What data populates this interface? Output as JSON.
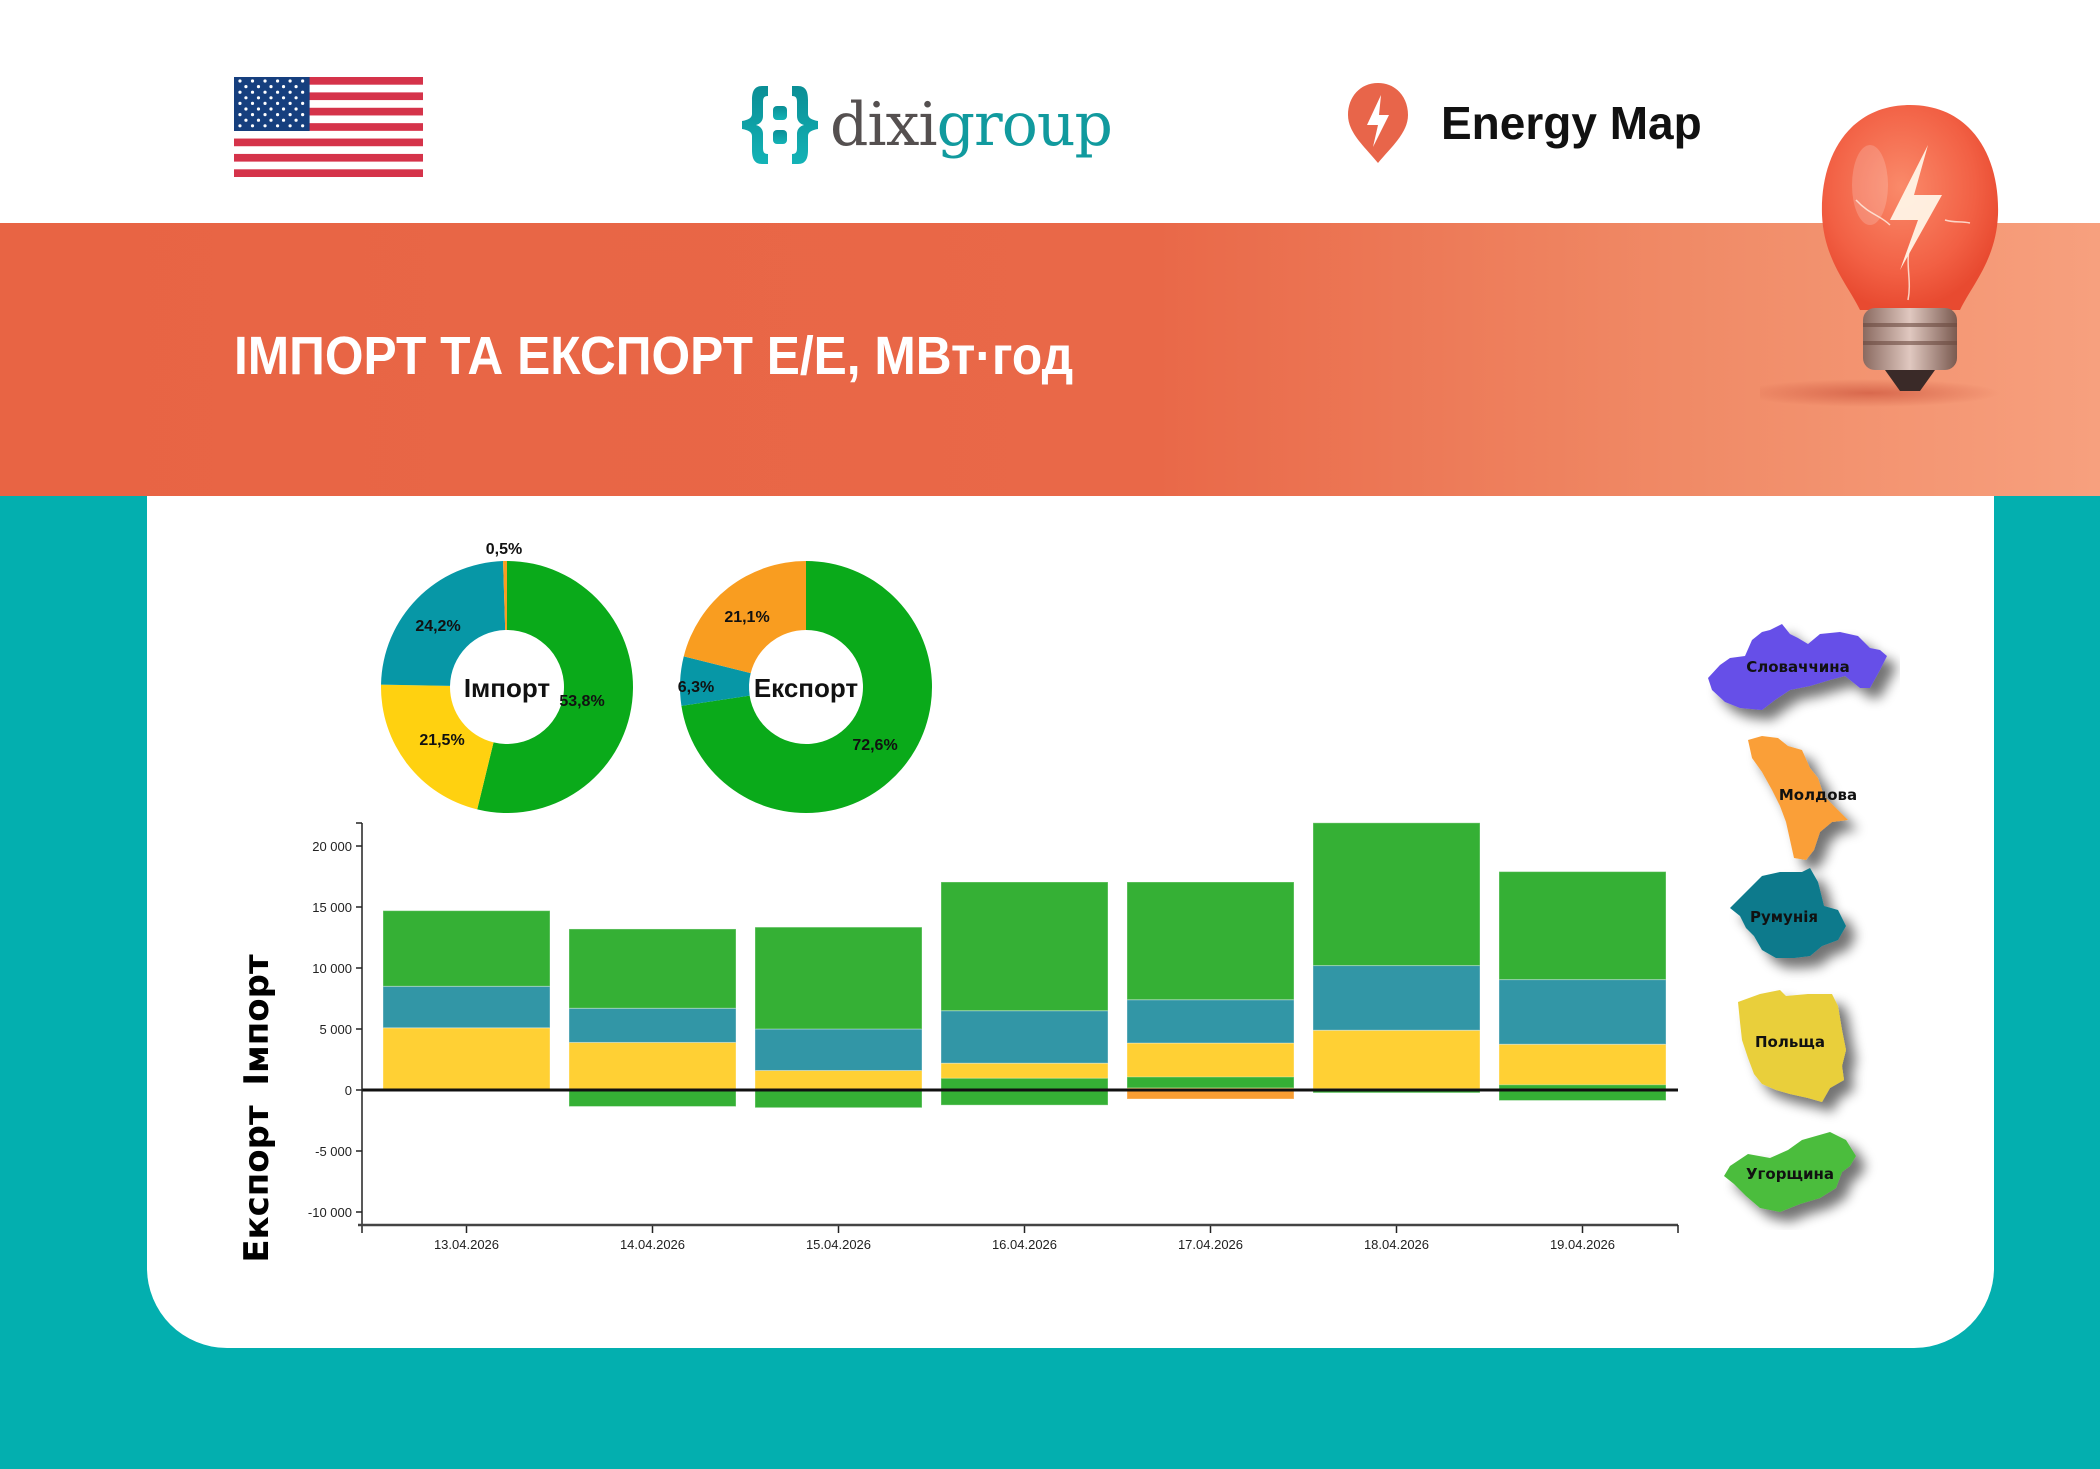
{
  "header": {
    "flag": "us-flag",
    "dixigroup": {
      "part1": "dixi",
      "part2": "group"
    },
    "energy_map": "Energy Map"
  },
  "title": "ІМПОРТ ТА ЕКСПОРТ Е/Е, МВт·год",
  "colors": {
    "hungary": "#35b035",
    "romania": "#3296a6",
    "poland": "#ffd034",
    "moldova": "#f99d32",
    "slovakia": "#6650e8",
    "pie_green": "#0aaa1a",
    "pie_teal": "#0797a6",
    "pie_yellow": "#ffd110",
    "pie_orange": "#f99d20",
    "band": "#e86444",
    "teal_bg": "#03afaf"
  },
  "pies": {
    "import": {
      "label": "Імпорт",
      "slices": [
        {
          "country": "Угорщина",
          "value": 53.8,
          "label": "53,8%"
        },
        {
          "country": "Польща",
          "value": 21.5,
          "label": "21,5%"
        },
        {
          "country": "Румунія",
          "value": 24.2,
          "label": "24,2%"
        },
        {
          "country": "Молдова",
          "value": 0.5,
          "label": "0,5%"
        }
      ]
    },
    "export": {
      "label": "Експорт",
      "slices": [
        {
          "country": "Угорщина",
          "value": 72.6,
          "label": "72,6%"
        },
        {
          "country": "Румунія",
          "value": 6.3,
          "label": "6,3%"
        },
        {
          "country": "Молдова",
          "value": 21.1,
          "label": "21,1%"
        }
      ]
    }
  },
  "axis_titles": {
    "import": "Імпорт",
    "export": "Експорт"
  },
  "legend": {
    "items": [
      {
        "name": "Словаччина",
        "color": "#6650e8"
      },
      {
        "name": "Молдова",
        "color": "#fa9f38"
      },
      {
        "name": "Румунія",
        "color": "#077a8c"
      },
      {
        "name": "Польща",
        "color": "#e9cf3a"
      },
      {
        "name": "Угорщина",
        "color": "#4cbd3c"
      }
    ]
  },
  "chart_data": [
    {
      "type": "pie",
      "title": "Імпорт",
      "categories": [
        "Угорщина",
        "Польща",
        "Румунія",
        "Молдова"
      ],
      "values": [
        53.8,
        21.5,
        24.2,
        0.5
      ],
      "labels": [
        "53,8%",
        "21,5%",
        "24,2%",
        "0,5%"
      ],
      "donut": true
    },
    {
      "type": "pie",
      "title": "Експорт",
      "categories": [
        "Угорщина",
        "Румунія",
        "Молдова"
      ],
      "values": [
        72.6,
        6.3,
        21.1
      ],
      "labels": [
        "72,6%",
        "6,3%",
        "21,1%"
      ],
      "donut": true
    },
    {
      "type": "bar",
      "stacked": true,
      "title": "ІМПОРТ ТА ЕКСПОРТ Е/Е, МВт·год",
      "xlabel": "",
      "ylabel_positive": "Імпорт",
      "ylabel_negative": "Експорт",
      "categories": [
        "13.04.2026",
        "14.04.2026",
        "15.04.2026",
        "16.04.2026",
        "17.04.2026",
        "18.04.2026",
        "19.04.2026"
      ],
      "yticks": [
        20000,
        15000,
        10000,
        5000,
        0,
        -5000,
        -10000
      ],
      "ytick_labels": [
        "20 000",
        "15 000",
        "10 000",
        "5 000",
        "0",
        "-5 000",
        "-10 000"
      ],
      "ylim": [
        -11000,
        22000
      ],
      "series": [
        {
          "name": "Польща (імпорт)",
          "color": "#ffd034",
          "values": [
            5100,
            3900,
            1600,
            2200,
            3850,
            4900,
            3750
          ]
        },
        {
          "name": "Румунія (імпорт)",
          "color": "#3296a6",
          "values": [
            3400,
            2800,
            3400,
            4300,
            3550,
            5300,
            5300
          ]
        },
        {
          "name": "Угорщина (імпорт)",
          "color": "#35b035",
          "values": [
            6200,
            6500,
            8350,
            10550,
            9650,
            11700,
            8850
          ]
        },
        {
          "name": "Молдова (експорт)",
          "color": "#f99d32",
          "values": [
            0,
            0,
            -50,
            -630,
            -740,
            -100,
            -430
          ]
        },
        {
          "name": "Румунія (експорт)",
          "color": "#3296a6",
          "values": [
            0,
            0,
            0,
            -330,
            -330,
            0,
            0
          ]
        },
        {
          "name": "Угорщина (експорт)",
          "color": "#35b035",
          "values": [
            -100,
            -1350,
            -1500,
            -2200,
            -900,
            -330,
            -1290
          ]
        }
      ],
      "grid": false
    }
  ]
}
